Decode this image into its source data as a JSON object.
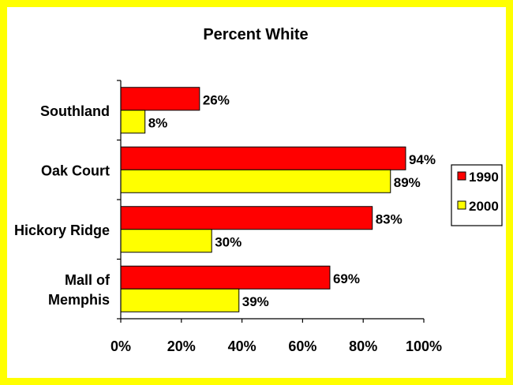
{
  "chart_data": {
    "type": "bar",
    "orientation": "horizontal",
    "title": "Percent White",
    "categories": [
      "Southland",
      "Oak Court",
      "Hickory Ridge",
      "Mall of Memphis"
    ],
    "series": [
      {
        "name": "1990",
        "values": [
          26,
          94,
          83,
          69
        ],
        "labels": [
          "26%",
          "94%",
          "83%",
          "69%"
        ],
        "color": "#ff0000"
      },
      {
        "name": "2000",
        "values": [
          8,
          89,
          30,
          39
        ],
        "labels": [
          "8%",
          "89%",
          "30%",
          "39%"
        ],
        "color": "#ffff00"
      }
    ],
    "xlim": [
      0,
      100
    ],
    "x_ticks": [
      "0%",
      "20%",
      "40%",
      "60%",
      "80%",
      "100%"
    ],
    "xlabel": "",
    "ylabel": "",
    "grid": false,
    "legend": "right"
  },
  "colors": {
    "frame": "#ffff00",
    "background": "#ffffff"
  }
}
